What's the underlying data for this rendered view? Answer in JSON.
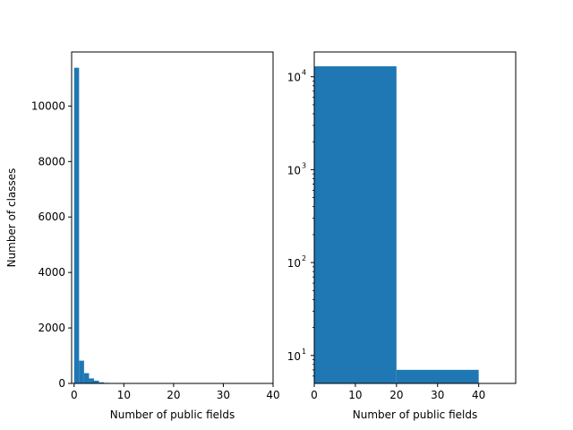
{
  "colors": {
    "bar": "#1f77b4",
    "axes": "#000000",
    "background": "#ffffff"
  },
  "chart_data": [
    {
      "type": "bar",
      "panel": "left",
      "yscale": "linear",
      "xlabel": "Number of public fields",
      "ylabel": "Number of classes",
      "xlim": [
        -0.5,
        40
      ],
      "ylim": [
        0,
        11950
      ],
      "xticks": [
        0,
        10,
        20,
        30,
        40
      ],
      "xtick_labels": [
        "0",
        "10",
        "20",
        "30",
        "40"
      ],
      "yticks": [
        0,
        2000,
        4000,
        6000,
        8000,
        10000
      ],
      "ytick_labels": [
        "0",
        "2000",
        "4000",
        "6000",
        "8000",
        "10000"
      ],
      "bins": [
        {
          "x0": 0,
          "x1": 1,
          "value": 11380
        },
        {
          "x0": 1,
          "x1": 2,
          "value": 820
        },
        {
          "x0": 2,
          "x1": 3,
          "value": 370
        },
        {
          "x0": 3,
          "x1": 4,
          "value": 180
        },
        {
          "x0": 4,
          "x1": 5,
          "value": 100
        },
        {
          "x0": 5,
          "x1": 6,
          "value": 40
        },
        {
          "x0": 6,
          "x1": 7,
          "value": 20
        },
        {
          "x0": 7,
          "x1": 8,
          "value": 10
        },
        {
          "x0": 8,
          "x1": 9,
          "value": 8
        },
        {
          "x0": 9,
          "x1": 10,
          "value": 5
        }
      ],
      "grid": false
    },
    {
      "type": "bar",
      "panel": "right",
      "yscale": "log",
      "xlabel": "Number of public fields",
      "ylabel": "",
      "xlim": [
        0,
        49
      ],
      "ylim": [
        5,
        18500
      ],
      "xticks": [
        0,
        10,
        20,
        30,
        40
      ],
      "xtick_labels": [
        "0",
        "10",
        "20",
        "30",
        "40"
      ],
      "yticks": [
        10,
        100,
        1000,
        10000
      ],
      "ytick_labels": [
        {
          "base": "10",
          "exp": "1"
        },
        {
          "base": "10",
          "exp": "2"
        },
        {
          "base": "10",
          "exp": "3"
        },
        {
          "base": "10",
          "exp": "4"
        }
      ],
      "bins": [
        {
          "x0": 0,
          "x1": 20,
          "value": 12960
        },
        {
          "x0": 20,
          "x1": 40,
          "value": 7
        }
      ],
      "grid": false
    }
  ]
}
